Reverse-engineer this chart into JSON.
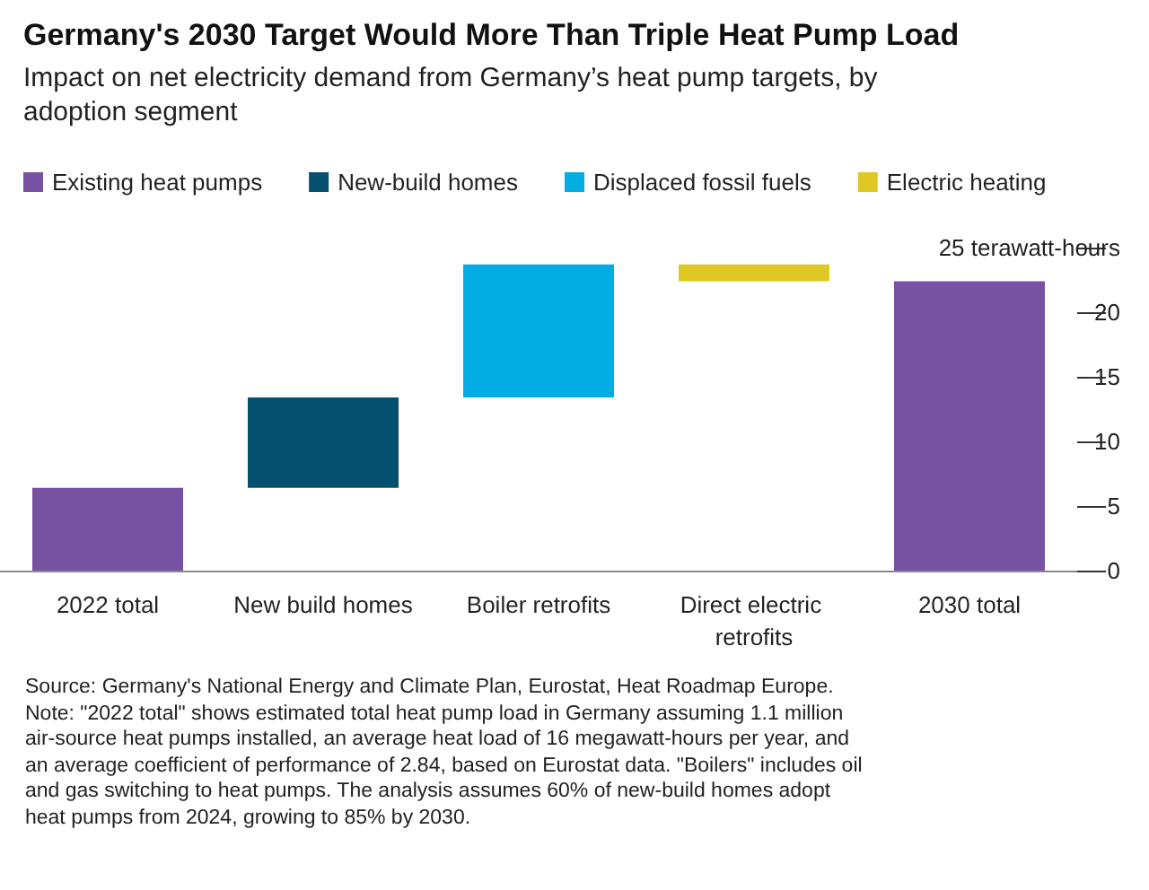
{
  "chart_data": {
    "type": "bar",
    "title": "Germany's 2030 Target Would More Than Triple Heat Pump Load",
    "subtitle": "Impact on net electricity demand from Germany’s heat pump targets, by adoption segment",
    "categories": [
      "2022 total",
      "New build homes",
      "Boiler retrofits",
      "Direct electric retrofits",
      "2030 total"
    ],
    "series": [
      {
        "name": "Existing heat pumps",
        "color": "#7752a3",
        "values": [
          6.4,
          null,
          null,
          null,
          22.4
        ],
        "base": [
          0,
          null,
          null,
          null,
          0
        ]
      },
      {
        "name": "New-build homes",
        "color": "#03506f",
        "values": [
          null,
          7,
          null,
          null,
          null
        ],
        "base": [
          null,
          6.4,
          null,
          null,
          null
        ]
      },
      {
        "name": "Displaced fossil fuels",
        "color": "#02ade3",
        "values": [
          null,
          null,
          10.3,
          null,
          null
        ],
        "base": [
          null,
          null,
          13.4,
          null,
          null
        ]
      },
      {
        "name": "Electric heating",
        "color": "#dfc823",
        "values": [
          null,
          null,
          null,
          -1.3,
          null
        ],
        "base": [
          null,
          null,
          null,
          23.7,
          null
        ]
      }
    ],
    "ylim": [
      0,
      25
    ],
    "yticks": [
      0,
      5,
      10,
      15,
      20,
      {
        "value": 25,
        "label": "25 terawatt-hours"
      }
    ],
    "legend": "top",
    "annotations": [
      "Source: Germany's National Energy and Climate Plan, Eurostat, Heat Roadmap Europe.",
      "Note: \"2022 total\" shows estimated total heat pump load in Germany assuming 1.1 million air-source heat pumps installed, an average heat load of 16 megawatt-hours per year, and an average coefficient of performance of 2.84, based on Eurostat data. \"Boilers\" includes oil and gas switching to heat pumps. The analysis assumes 60% of new-build homes adopt heat pumps from 2024, growing to 85% by 2030."
    ]
  }
}
